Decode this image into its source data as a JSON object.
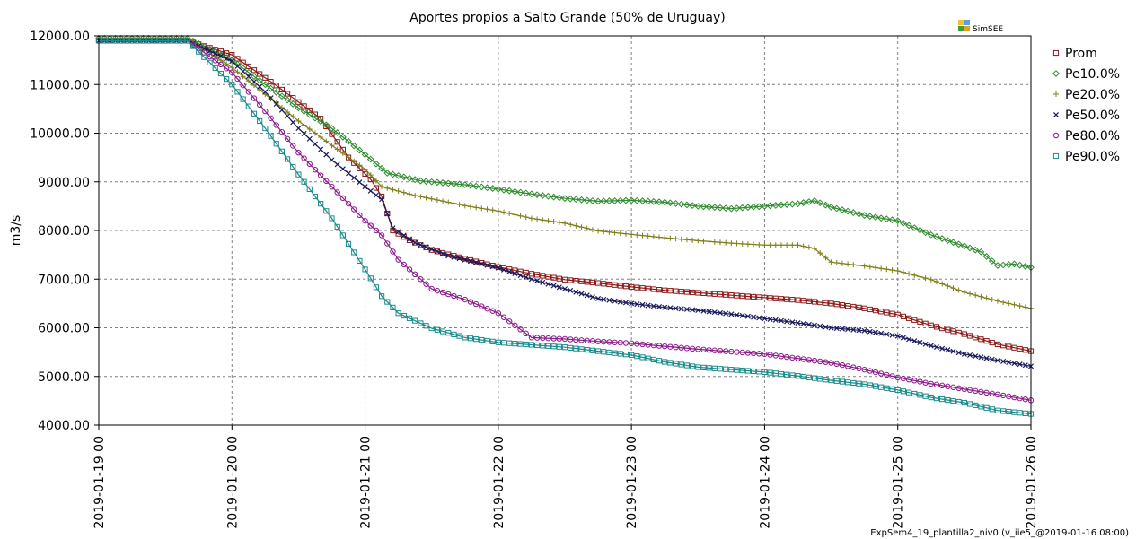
{
  "chart_data": {
    "type": "line",
    "title": "Aportes propios a Salto Grande (50% de Uruguay)",
    "ylabel": "m3/s",
    "xlabel": "",
    "ylim": [
      4000,
      12000
    ],
    "y_ticks": [
      "12000.00",
      "11000.00",
      "10000.00",
      "9000.00",
      "8000.00",
      "7000.00",
      "6000.00",
      "5000.00",
      "4000.00"
    ],
    "y_tick_values": [
      12000,
      11000,
      10000,
      9000,
      8000,
      7000,
      6000,
      5000,
      4000
    ],
    "x_ticks": [
      "2019-01-19 00",
      "2019-01-20 00",
      "2019-01-21 00",
      "2019-01-22 00",
      "2019-01-23 00",
      "2019-01-24 00",
      "2019-01-25 00",
      "2019-01-26 00"
    ],
    "x_unit": "hours",
    "xlim": [
      0,
      168
    ],
    "grid": true,
    "legend_position": "right",
    "series": [
      {
        "name": "Prom",
        "color": "#8b1a1a",
        "marker": "square",
        "points": [
          [
            0,
            11900
          ],
          [
            8,
            11900
          ],
          [
            16,
            11900
          ],
          [
            24,
            11610
          ],
          [
            32,
            10980
          ],
          [
            40,
            10300
          ],
          [
            45,
            9500
          ],
          [
            49,
            9050
          ],
          [
            51,
            8700
          ],
          [
            53,
            8000
          ],
          [
            56,
            7800
          ],
          [
            60,
            7600
          ],
          [
            66,
            7420
          ],
          [
            72,
            7250
          ],
          [
            78,
            7110
          ],
          [
            84,
            6990
          ],
          [
            90,
            6920
          ],
          [
            96,
            6840
          ],
          [
            102,
            6770
          ],
          [
            108,
            6720
          ],
          [
            114,
            6670
          ],
          [
            120,
            6620
          ],
          [
            126,
            6570
          ],
          [
            132,
            6500
          ],
          [
            138,
            6400
          ],
          [
            144,
            6270
          ],
          [
            150,
            6050
          ],
          [
            156,
            5870
          ],
          [
            162,
            5660
          ],
          [
            168,
            5520
          ]
        ]
      },
      {
        "name": "Pe10.0%",
        "color": "#2e8b2e",
        "marker": "diamond",
        "points": [
          [
            0,
            11950
          ],
          [
            8,
            11950
          ],
          [
            16,
            11950
          ],
          [
            24,
            11500
          ],
          [
            30,
            11000
          ],
          [
            36,
            10520
          ],
          [
            42,
            10100
          ],
          [
            48,
            9560
          ],
          [
            52,
            9180
          ],
          [
            58,
            9020
          ],
          [
            66,
            8940
          ],
          [
            72,
            8850
          ],
          [
            78,
            8750
          ],
          [
            84,
            8660
          ],
          [
            90,
            8600
          ],
          [
            96,
            8620
          ],
          [
            102,
            8580
          ],
          [
            108,
            8500
          ],
          [
            114,
            8450
          ],
          [
            120,
            8500
          ],
          [
            126,
            8550
          ],
          [
            129,
            8610
          ],
          [
            132,
            8480
          ],
          [
            138,
            8310
          ],
          [
            144,
            8200
          ],
          [
            150,
            7910
          ],
          [
            156,
            7680
          ],
          [
            159,
            7560
          ],
          [
            162,
            7280
          ],
          [
            165,
            7310
          ],
          [
            168,
            7240
          ]
        ]
      },
      {
        "name": "Pe20.0%",
        "color": "#7f7f1a",
        "marker": "plus",
        "points": [
          [
            0,
            11950
          ],
          [
            8,
            11950
          ],
          [
            16,
            11950
          ],
          [
            24,
            11350
          ],
          [
            30,
            10800
          ],
          [
            36,
            10250
          ],
          [
            42,
            9750
          ],
          [
            48,
            9260
          ],
          [
            51,
            8900
          ],
          [
            57,
            8720
          ],
          [
            66,
            8510
          ],
          [
            72,
            8400
          ],
          [
            78,
            8250
          ],
          [
            84,
            8150
          ],
          [
            90,
            7990
          ],
          [
            96,
            7920
          ],
          [
            102,
            7850
          ],
          [
            108,
            7790
          ],
          [
            114,
            7740
          ],
          [
            120,
            7700
          ],
          [
            126,
            7700
          ],
          [
            129,
            7630
          ],
          [
            132,
            7350
          ],
          [
            138,
            7270
          ],
          [
            144,
            7170
          ],
          [
            150,
            6990
          ],
          [
            156,
            6730
          ],
          [
            162,
            6550
          ],
          [
            168,
            6400
          ]
        ]
      },
      {
        "name": "Pe50.0%",
        "color": "#1a1a5e",
        "marker": "x",
        "points": [
          [
            0,
            11900
          ],
          [
            8,
            11900
          ],
          [
            16,
            11900
          ],
          [
            24,
            11480
          ],
          [
            30,
            10850
          ],
          [
            36,
            10100
          ],
          [
            42,
            9450
          ],
          [
            48,
            8900
          ],
          [
            51,
            8640
          ],
          [
            53,
            8050
          ],
          [
            57,
            7750
          ],
          [
            63,
            7480
          ],
          [
            72,
            7230
          ],
          [
            78,
            7000
          ],
          [
            84,
            6800
          ],
          [
            90,
            6600
          ],
          [
            96,
            6500
          ],
          [
            102,
            6420
          ],
          [
            108,
            6360
          ],
          [
            114,
            6280
          ],
          [
            120,
            6190
          ],
          [
            126,
            6100
          ],
          [
            132,
            6000
          ],
          [
            138,
            5940
          ],
          [
            144,
            5830
          ],
          [
            150,
            5630
          ],
          [
            156,
            5460
          ],
          [
            162,
            5330
          ],
          [
            168,
            5210
          ]
        ]
      },
      {
        "name": "Pe80.0%",
        "color": "#8b1a8b",
        "marker": "circle",
        "points": [
          [
            0,
            11900
          ],
          [
            8,
            11900
          ],
          [
            16,
            11900
          ],
          [
            24,
            11250
          ],
          [
            30,
            10450
          ],
          [
            36,
            9600
          ],
          [
            42,
            8900
          ],
          [
            48,
            8200
          ],
          [
            51,
            7900
          ],
          [
            54,
            7400
          ],
          [
            57,
            7100
          ],
          [
            60,
            6800
          ],
          [
            66,
            6580
          ],
          [
            72,
            6300
          ],
          [
            75,
            6050
          ],
          [
            78,
            5800
          ],
          [
            84,
            5770
          ],
          [
            90,
            5720
          ],
          [
            96,
            5680
          ],
          [
            102,
            5620
          ],
          [
            108,
            5560
          ],
          [
            114,
            5510
          ],
          [
            120,
            5460
          ],
          [
            126,
            5370
          ],
          [
            132,
            5280
          ],
          [
            138,
            5140
          ],
          [
            144,
            4980
          ],
          [
            150,
            4850
          ],
          [
            156,
            4740
          ],
          [
            162,
            4630
          ],
          [
            168,
            4510
          ]
        ]
      },
      {
        "name": "Pe90.0%",
        "color": "#1a8b8b",
        "marker": "square",
        "points": [
          [
            0,
            11900
          ],
          [
            8,
            11900
          ],
          [
            16,
            11900
          ],
          [
            24,
            11000
          ],
          [
            30,
            10100
          ],
          [
            36,
            9150
          ],
          [
            42,
            8250
          ],
          [
            48,
            7200
          ],
          [
            51,
            6650
          ],
          [
            54,
            6300
          ],
          [
            60,
            5990
          ],
          [
            66,
            5800
          ],
          [
            72,
            5700
          ],
          [
            78,
            5650
          ],
          [
            84,
            5600
          ],
          [
            90,
            5520
          ],
          [
            96,
            5440
          ],
          [
            102,
            5300
          ],
          [
            108,
            5190
          ],
          [
            114,
            5140
          ],
          [
            120,
            5090
          ],
          [
            126,
            5010
          ],
          [
            132,
            4920
          ],
          [
            138,
            4840
          ],
          [
            144,
            4720
          ],
          [
            150,
            4570
          ],
          [
            156,
            4460
          ],
          [
            162,
            4300
          ],
          [
            168,
            4230
          ]
        ]
      }
    ]
  },
  "branding": {
    "logo_text": "SimSEE",
    "footer": "ExpSem4_19_plantilla2_niv0 (v_iie5_@2019-01-16 08:00)",
    "logo_colors": [
      "#f2c12e",
      "#5aa0e0",
      "#3aa03a",
      "#e0a020"
    ]
  }
}
